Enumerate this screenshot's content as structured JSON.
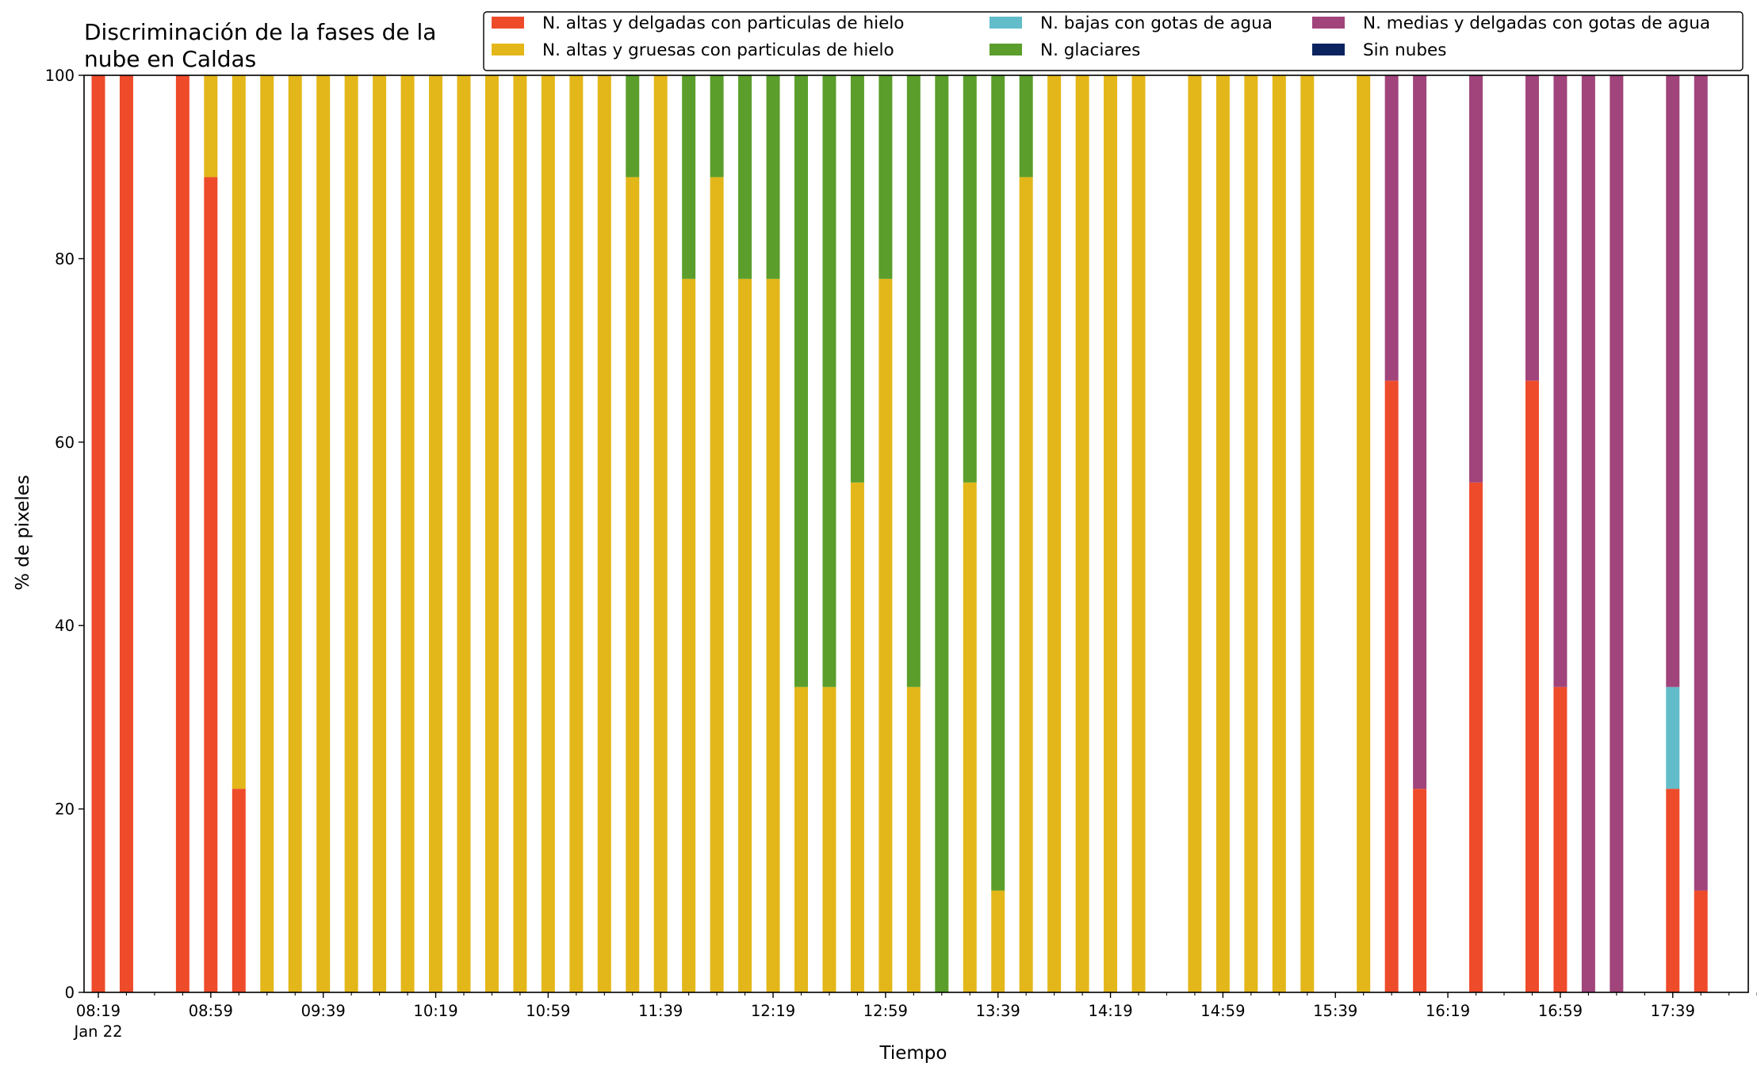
{
  "chart_data": {
    "type": "bar",
    "stacked": true,
    "title_lines": [
      "Discriminación de la fases de la",
      "nube en Caldas"
    ],
    "xlabel": "Tiempo",
    "ylabel": "% de pixeles",
    "ylim": [
      0,
      100
    ],
    "yticks": [
      "0",
      "20",
      "40",
      "60",
      "80",
      "100"
    ],
    "xtick_labels": [
      "08:19",
      "08:59",
      "09:39",
      "10:19",
      "10:59",
      "11:39",
      "12:19",
      "12:59",
      "13:39",
      "14:19",
      "14:59",
      "15:39",
      "16:19",
      "16:59",
      "17:39"
    ],
    "xtick_sublabel": "Jan 22",
    "x_start": "08:19",
    "x_end": "18:09",
    "x_step_minutes": 10,
    "grid": false,
    "legend_position": "top-right",
    "series": [
      {
        "name": "N. altas y delgadas con particulas de hielo",
        "color": "#ee4b2b"
      },
      {
        "name": "N. altas y gruesas con particulas de hielo",
        "color": "#e3b719"
      },
      {
        "name": "N. bajas con gotas de agua",
        "color": "#62bcc9"
      },
      {
        "name": "N. glaciares",
        "color": "#5b9e2c"
      },
      {
        "name": "N. medias y delgadas con gotas de agua",
        "color": "#a0447b"
      },
      {
        "name": "Sin nubes",
        "color": "#0b2460"
      }
    ],
    "bars": [
      {
        "time": "08:19",
        "values": [
          100,
          0,
          0,
          0,
          0,
          0
        ]
      },
      {
        "time": "08:29",
        "values": [
          100,
          0,
          0,
          0,
          0,
          0
        ]
      },
      {
        "time": "08:49",
        "values": [
          100,
          0,
          0,
          0,
          0,
          0
        ]
      },
      {
        "time": "08:59",
        "values": [
          88.9,
          11.1,
          0,
          0,
          0,
          0
        ]
      },
      {
        "time": "09:09",
        "values": [
          22.2,
          77.8,
          0,
          0,
          0,
          0
        ]
      },
      {
        "time": "09:19",
        "values": [
          0,
          100,
          0,
          0,
          0,
          0
        ]
      },
      {
        "time": "09:29",
        "values": [
          0,
          100,
          0,
          0,
          0,
          0
        ]
      },
      {
        "time": "09:39",
        "values": [
          0,
          100,
          0,
          0,
          0,
          0
        ]
      },
      {
        "time": "09:49",
        "values": [
          0,
          100,
          0,
          0,
          0,
          0
        ]
      },
      {
        "time": "09:59",
        "values": [
          0,
          100,
          0,
          0,
          0,
          0
        ]
      },
      {
        "time": "10:09",
        "values": [
          0,
          100,
          0,
          0,
          0,
          0
        ]
      },
      {
        "time": "10:19",
        "values": [
          0,
          100,
          0,
          0,
          0,
          0
        ]
      },
      {
        "time": "10:29",
        "values": [
          0,
          100,
          0,
          0,
          0,
          0
        ]
      },
      {
        "time": "10:39",
        "values": [
          0,
          100,
          0,
          0,
          0,
          0
        ]
      },
      {
        "time": "10:49",
        "values": [
          0,
          100,
          0,
          0,
          0,
          0
        ]
      },
      {
        "time": "10:59",
        "values": [
          0,
          100,
          0,
          0,
          0,
          0
        ]
      },
      {
        "time": "11:09",
        "values": [
          0,
          100,
          0,
          0,
          0,
          0
        ]
      },
      {
        "time": "11:19",
        "values": [
          0,
          100,
          0,
          0,
          0,
          0
        ]
      },
      {
        "time": "11:29",
        "values": [
          0,
          88.9,
          0,
          11.1,
          0,
          0
        ]
      },
      {
        "time": "11:39",
        "values": [
          0,
          100,
          0,
          0,
          0,
          0
        ]
      },
      {
        "time": "11:49",
        "values": [
          0,
          77.8,
          0,
          22.2,
          0,
          0
        ]
      },
      {
        "time": "11:59",
        "values": [
          0,
          88.9,
          0,
          11.1,
          0,
          0
        ]
      },
      {
        "time": "12:09",
        "values": [
          0,
          77.8,
          0,
          22.2,
          0,
          0
        ]
      },
      {
        "time": "12:19",
        "values": [
          0,
          77.8,
          0,
          22.2,
          0,
          0
        ]
      },
      {
        "time": "12:29",
        "values": [
          0,
          33.3,
          0,
          66.7,
          0,
          0
        ]
      },
      {
        "time": "12:39",
        "values": [
          0,
          33.3,
          0,
          66.7,
          0,
          0
        ]
      },
      {
        "time": "12:49",
        "values": [
          0,
          55.6,
          0,
          44.4,
          0,
          0
        ]
      },
      {
        "time": "12:59",
        "values": [
          0,
          77.8,
          0,
          22.2,
          0,
          0
        ]
      },
      {
        "time": "13:09",
        "values": [
          0,
          33.3,
          0,
          66.7,
          0,
          0
        ]
      },
      {
        "time": "13:19",
        "values": [
          0,
          0,
          0,
          100,
          0,
          0
        ]
      },
      {
        "time": "13:29",
        "values": [
          0,
          55.6,
          0,
          44.4,
          0,
          0
        ]
      },
      {
        "time": "13:39",
        "values": [
          0,
          11.1,
          0,
          88.9,
          0,
          0
        ]
      },
      {
        "time": "13:49",
        "values": [
          0,
          88.9,
          0,
          11.1,
          0,
          0
        ]
      },
      {
        "time": "13:59",
        "values": [
          0,
          100,
          0,
          0,
          0,
          0
        ]
      },
      {
        "time": "14:09",
        "values": [
          0,
          100,
          0,
          0,
          0,
          0
        ]
      },
      {
        "time": "14:19",
        "values": [
          0,
          100,
          0,
          0,
          0,
          0
        ]
      },
      {
        "time": "14:29",
        "values": [
          0,
          100,
          0,
          0,
          0,
          0
        ]
      },
      {
        "time": "14:49",
        "values": [
          0,
          100,
          0,
          0,
          0,
          0
        ]
      },
      {
        "time": "14:59",
        "values": [
          0,
          100,
          0,
          0,
          0,
          0
        ]
      },
      {
        "time": "15:09",
        "values": [
          0,
          100,
          0,
          0,
          0,
          0
        ]
      },
      {
        "time": "15:19",
        "values": [
          0,
          100,
          0,
          0,
          0,
          0
        ]
      },
      {
        "time": "15:29",
        "values": [
          0,
          100,
          0,
          0,
          0,
          0
        ]
      },
      {
        "time": "15:49",
        "values": [
          0,
          100,
          0,
          0,
          0,
          0
        ]
      },
      {
        "time": "15:59",
        "values": [
          66.7,
          0,
          0,
          0,
          33.3,
          0
        ]
      },
      {
        "time": "16:09",
        "values": [
          22.2,
          0,
          0,
          0,
          77.8,
          0
        ]
      },
      {
        "time": "16:29",
        "values": [
          55.6,
          0,
          0,
          0,
          44.4,
          0
        ]
      },
      {
        "time": "16:49",
        "values": [
          66.7,
          0,
          0,
          0,
          33.3,
          0
        ]
      },
      {
        "time": "16:59",
        "values": [
          33.3,
          0,
          0,
          0,
          66.7,
          0
        ]
      },
      {
        "time": "17:09",
        "values": [
          0,
          0,
          0,
          0,
          100,
          0
        ]
      },
      {
        "time": "17:19",
        "values": [
          0,
          0,
          0,
          0,
          100,
          0
        ]
      },
      {
        "time": "17:39",
        "values": [
          22.2,
          0,
          11.1,
          0,
          66.7,
          0
        ]
      },
      {
        "time": "17:49",
        "values": [
          11.1,
          0,
          0,
          0,
          88.9,
          0
        ]
      }
    ]
  }
}
